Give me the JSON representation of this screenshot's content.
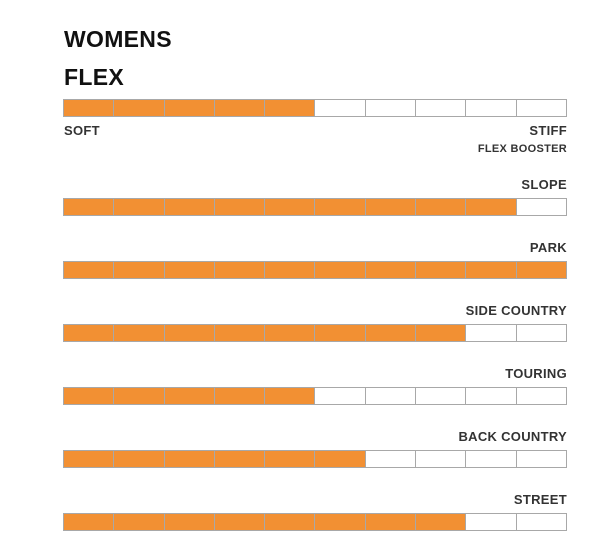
{
  "header": {
    "title_line1": "WOMENS",
    "title_line2": "FLEX"
  },
  "colors": {
    "fill": "#f29033",
    "empty": "#ffffff",
    "border": "#a8a8a8"
  },
  "flex_scale": {
    "min_label": "SOFT",
    "max_label": "STIFF",
    "segments_total": 10,
    "filled": 5
  },
  "booster_label": "FLEX BOOSTER",
  "ratings": [
    {
      "label": "SLOPE",
      "filled": 9
    },
    {
      "label": "PARK",
      "filled": 10
    },
    {
      "label": "SIDE COUNTRY",
      "filled": 8
    },
    {
      "label": "TOURING",
      "filled": 5
    },
    {
      "label": "BACK COUNTRY",
      "filled": 6
    },
    {
      "label": "STREET",
      "filled": 8
    }
  ]
}
